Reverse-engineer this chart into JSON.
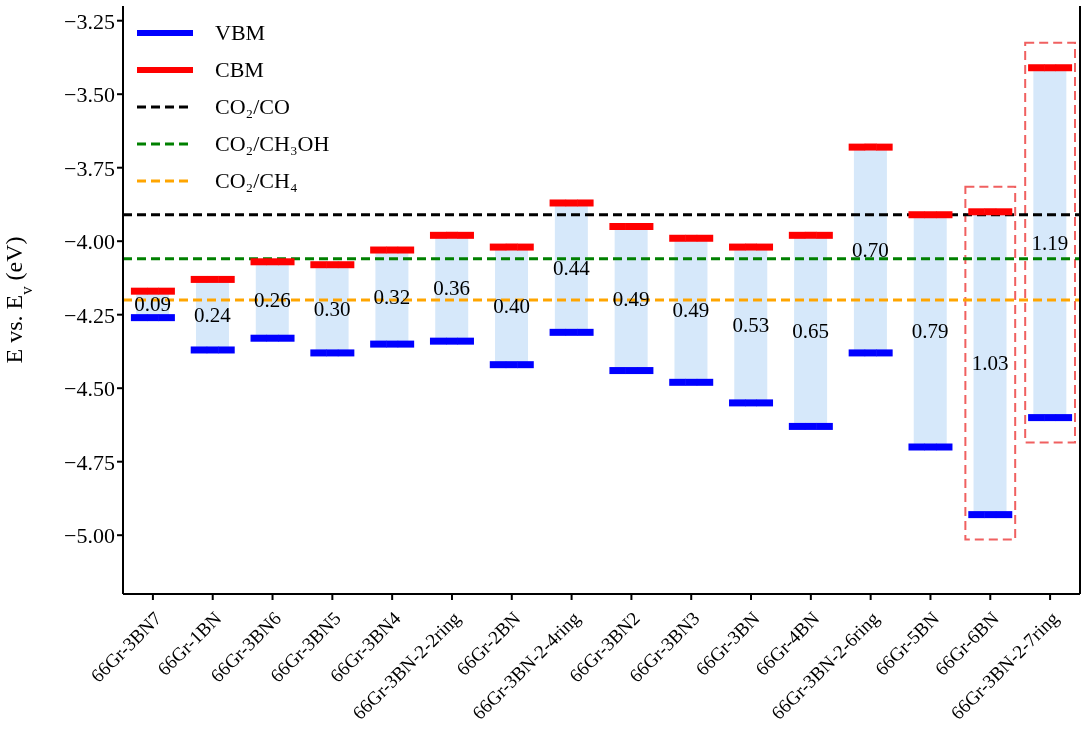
{
  "chart_data": {
    "type": "bar",
    "ylabel": "E vs. E$_{v}$ (eV)",
    "categories": [
      "66Gr-3BN7",
      "66Gr-1BN",
      "66Gr-3BN6",
      "66Gr-3BN5",
      "66Gr-3BN4",
      "66Gr-3BN-2-2ring",
      "66Gr-2BN",
      "66Gr-3BN-2-4ring",
      "66Gr-3BN2",
      "66Gr-3BN3",
      "66Gr-3BN",
      "66Gr-4BN",
      "66Gr-3BN-2-6ring",
      "66Gr-5BN",
      "66Gr-6BN",
      "66Gr-3BN-2-7ring"
    ],
    "series": [
      {
        "color": "#d6e8fa",
        "value_labels": [
          "0.09",
          "0.24",
          "0.26",
          "0.30",
          "0.32",
          "0.36",
          "0.40",
          "0.44",
          "0.49",
          "0.49",
          "0.53",
          "0.65",
          "0.70",
          "0.79",
          "1.03",
          "1.19"
        ],
        "base": [
          -4.26,
          -4.37,
          -4.33,
          -4.38,
          -4.35,
          -4.34,
          -4.42,
          -4.31,
          -4.44,
          -4.48,
          -4.55,
          -4.63,
          -4.38,
          -4.7,
          -4.93,
          -4.6
        ],
        "values": [
          0.09,
          0.24,
          0.26,
          0.3,
          0.32,
          0.36,
          0.4,
          0.44,
          0.49,
          0.49,
          0.53,
          0.65,
          0.7,
          0.79,
          1.03,
          1.19
        ]
      },
      {
        "type": "scatter",
        "name": "VBM",
        "color": "#0000ff",
        "values": [
          -4.26,
          -4.37,
          -4.33,
          -4.38,
          -4.35,
          -4.34,
          -4.42,
          -4.31,
          -4.44,
          -4.48,
          -4.55,
          -4.63,
          -4.38,
          -4.7,
          -4.93,
          -4.6
        ]
      },
      {
        "type": "scatter",
        "name": "CBM",
        "color": "#ff0000",
        "values": [
          -4.17,
          -4.13,
          -4.07,
          -4.08,
          -4.03,
          -3.98,
          -4.02,
          -3.87,
          -3.95,
          -3.99,
          -4.02,
          -3.98,
          -3.68,
          -3.91,
          -3.9,
          -3.41
        ]
      }
    ],
    "ylim": [
      -5.2,
      -3.2
    ],
    "yticks": [
      {
        "value": -5.0,
        "label": "−5.00"
      },
      {
        "value": -4.75,
        "label": "−4.75"
      },
      {
        "value": -4.5,
        "label": "−4.50"
      },
      {
        "value": -4.25,
        "label": "−4.25"
      },
      {
        "value": -4.0,
        "label": "−4.00"
      },
      {
        "value": -3.75,
        "label": "−3.75"
      },
      {
        "value": -3.5,
        "label": "−3.50"
      },
      {
        "value": -3.25,
        "label": "−3.25"
      }
    ],
    "ref_lines": [
      {
        "axis": "y",
        "value": -3.91,
        "label": "CO₂/CO",
        "color": "#000000",
        "line_style": "dashed"
      },
      {
        "axis": "y",
        "value": -4.06,
        "label": "CO₂/CH₃OH",
        "color": "#008000",
        "line_style": "dashed"
      },
      {
        "axis": "y",
        "value": -4.2,
        "label": "CO₂/CH₄",
        "color": "#ffa500",
        "line_style": "dashed"
      }
    ],
    "legend": "top left"
  }
}
